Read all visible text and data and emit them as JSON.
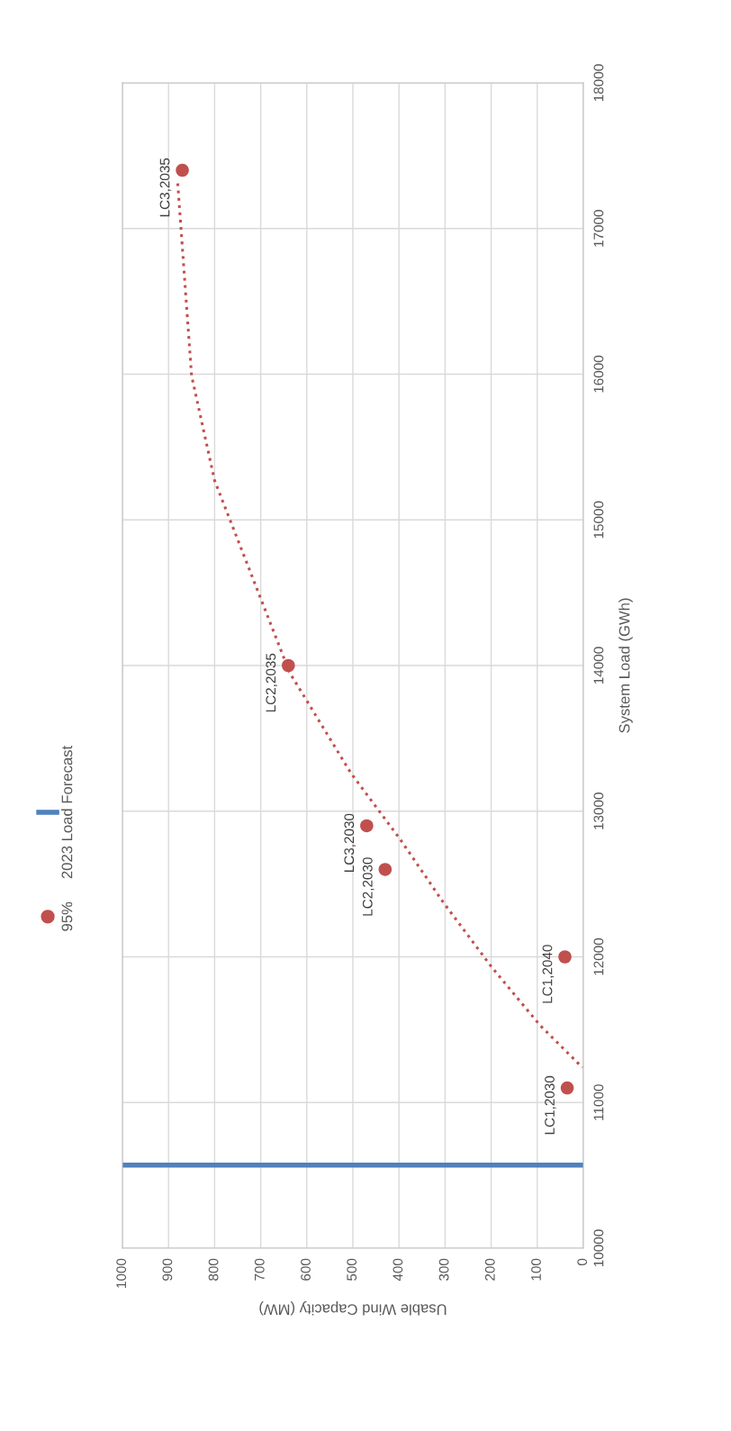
{
  "chart_data": {
    "type": "scatter",
    "xlabel": "Usable Wind Capacity (MW)",
    "ylabel": "System Load (GWh)",
    "xlim": [
      1000,
      0
    ],
    "xticks": [
      1000,
      900,
      800,
      700,
      600,
      500,
      400,
      300,
      200,
      100,
      0
    ],
    "ylim": [
      10000,
      18000
    ],
    "yticks": [
      10000,
      11000,
      12000,
      13000,
      14000,
      15000,
      16000,
      17000,
      18000
    ],
    "grid": true,
    "legend": "left",
    "series": [
      {
        "name": "95%",
        "marker": "circle",
        "color": "#c0504d",
        "x": [
          870,
          640,
          470,
          430,
          40,
          35
        ],
        "values": [
          17400,
          14000,
          12900,
          12600,
          12000,
          11100
        ]
      },
      {
        "type": "line",
        "line_style": "dotted",
        "color": "#c0504d",
        "x": [
          880,
          850,
          800,
          637,
          504,
          398,
          303,
          199,
          94,
          2
        ],
        "values": [
          17310,
          15990,
          15270,
          13950,
          13260,
          12810,
          12370,
          11930,
          11530,
          11240
        ]
      }
    ],
    "ref_lines": [
      {
        "axis": "y",
        "value": 10570,
        "label": "2023 Load Forecast",
        "color": "#4f81bd",
        "line_style": "solid"
      }
    ],
    "annotations": [
      {
        "text": "LC3,2035",
        "x": 870,
        "y": 17400
      },
      {
        "text": "LC2,2035",
        "x": 640,
        "y": 14000
      },
      {
        "text": "LC3,2030",
        "x": 470,
        "y": 12900
      },
      {
        "text": "LC2,2030",
        "x": 430,
        "y": 12600
      },
      {
        "text": "LC1,2040",
        "x": 40,
        "y": 12000
      },
      {
        "text": "LC1,2030",
        "x": 35,
        "y": 11100
      }
    ]
  }
}
